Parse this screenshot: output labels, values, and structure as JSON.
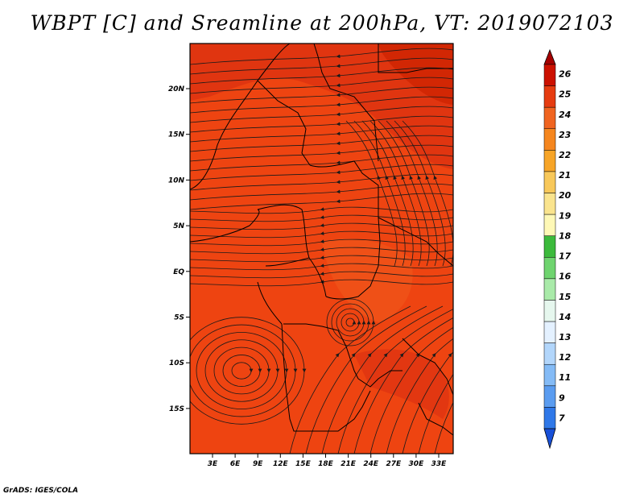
{
  "title": "WBPT [C] and Sreamline at 200hPa, VT: 2019072103",
  "footer": "GrADS: IGES/COLA",
  "map": {
    "lat_labels": [
      "20N",
      "15N",
      "10N",
      "5N",
      "EQ",
      "5S",
      "10S",
      "15S"
    ],
    "lon_labels": [
      "3E",
      "6E",
      "9E",
      "12E",
      "15E",
      "18E",
      "21E",
      "24E",
      "27E",
      "30E",
      "33E"
    ],
    "field_colors": {
      "base": "#ee4411",
      "warm": "#dd3311",
      "hot": "#cc2200",
      "cool": "#f06020"
    },
    "streamline_color": "#1a1a1a",
    "border_color": "#000000"
  },
  "colorbar": {
    "labels": [
      "26",
      "25",
      "24",
      "23",
      "22",
      "21",
      "20",
      "19",
      "18",
      "17",
      "16",
      "15",
      "14",
      "13",
      "12",
      "11",
      "9",
      "7"
    ],
    "colors": [
      "#a50000",
      "#cc1100",
      "#e63c10",
      "#f06420",
      "#f5861e",
      "#f7a528",
      "#f8c85a",
      "#fae48e",
      "#fef8b6",
      "#3cba3c",
      "#6fd46f",
      "#a9eaa9",
      "#e6f7ee",
      "#e4f1ff",
      "#b2d6fb",
      "#84bbf6",
      "#5a9cf0",
      "#2f78e8",
      "#1850d8"
    ]
  }
}
